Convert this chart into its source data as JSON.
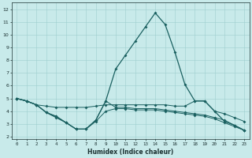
{
  "xlabel": "Humidex (Indice chaleur)",
  "xlim": [
    -0.5,
    23.5
  ],
  "ylim": [
    1.8,
    12.5
  ],
  "yticks": [
    2,
    3,
    4,
    5,
    6,
    7,
    8,
    9,
    10,
    11,
    12
  ],
  "xticks": [
    0,
    1,
    2,
    3,
    4,
    5,
    6,
    7,
    8,
    9,
    10,
    11,
    12,
    13,
    14,
    15,
    16,
    17,
    18,
    19,
    20,
    21,
    22,
    23
  ],
  "bg_color": "#c8eaea",
  "grid_color": "#9ecece",
  "line_color": "#1a6060",
  "lines": [
    {
      "x": [
        0,
        1,
        2,
        3,
        4,
        5,
        6,
        7,
        8,
        9,
        10,
        11,
        12,
        13,
        14,
        15,
        16,
        17,
        18,
        19,
        20,
        21,
        22,
        23
      ],
      "y": [
        5.0,
        4.8,
        4.5,
        3.9,
        3.5,
        3.1,
        2.6,
        2.6,
        3.3,
        4.8,
        7.3,
        8.4,
        9.5,
        10.6,
        11.7,
        10.8,
        8.6,
        6.1,
        4.8,
        4.8,
        4.0,
        3.2,
        2.9,
        2.5
      ]
    },
    {
      "x": [
        0,
        1,
        2,
        3,
        4,
        5,
        6,
        7,
        8,
        9,
        10,
        11,
        12,
        13,
        14,
        15,
        16,
        17,
        18,
        19,
        20,
        21,
        22,
        23
      ],
      "y": [
        5.0,
        4.8,
        4.5,
        4.4,
        4.3,
        4.3,
        4.3,
        4.3,
        4.4,
        4.5,
        4.5,
        4.5,
        4.5,
        4.5,
        4.5,
        4.5,
        4.4,
        4.4,
        4.8,
        4.8,
        4.0,
        3.8,
        3.5,
        3.2
      ]
    },
    {
      "x": [
        0,
        1,
        2,
        3,
        4,
        5,
        6,
        7,
        8,
        9,
        10,
        11,
        12,
        13,
        14,
        15,
        16,
        17,
        18,
        19,
        20,
        21,
        22,
        23
      ],
      "y": [
        5.0,
        4.8,
        4.5,
        3.9,
        3.6,
        3.1,
        2.6,
        2.6,
        3.3,
        4.8,
        4.3,
        4.3,
        4.2,
        4.2,
        4.2,
        4.1,
        4.0,
        3.9,
        3.8,
        3.7,
        3.5,
        3.3,
        2.9,
        2.5
      ]
    },
    {
      "x": [
        0,
        1,
        2,
        3,
        4,
        5,
        6,
        7,
        8,
        9,
        10,
        11,
        12,
        13,
        14,
        15,
        16,
        17,
        18,
        19,
        20,
        21,
        22,
        23
      ],
      "y": [
        5.0,
        4.8,
        4.5,
        3.9,
        3.6,
        3.1,
        2.6,
        2.6,
        3.2,
        4.0,
        4.2,
        4.2,
        4.1,
        4.1,
        4.1,
        4.0,
        3.9,
        3.8,
        3.7,
        3.6,
        3.4,
        3.1,
        2.8,
        2.5
      ]
    }
  ],
  "figsize": [
    3.2,
    2.0
  ],
  "dpi": 100
}
